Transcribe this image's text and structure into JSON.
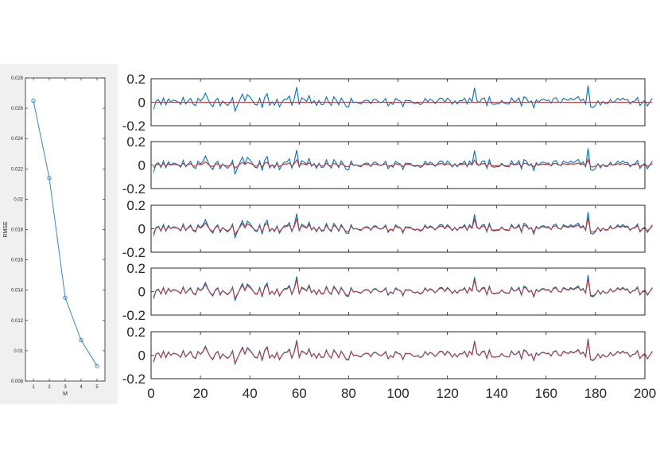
{
  "chart_data": [
    {
      "type": "line",
      "title": "",
      "xlabel": "M",
      "ylabel": "RMSE",
      "xlim": [
        0.5,
        5.5
      ],
      "ylim": [
        0.008,
        0.028
      ],
      "x_ticks": [
        "1",
        "2",
        "3",
        "4",
        "5"
      ],
      "y_ticks": [
        "0.008",
        "0.01",
        "0.012",
        "0.014",
        "0.016",
        "0.018",
        "0.02",
        "0.022",
        "0.024",
        "0.026",
        "0.028"
      ],
      "grid": false,
      "marker": "circle",
      "series": [
        {
          "color": "#3a87c8",
          "x": [
            1,
            2,
            3,
            4,
            5
          ],
          "values": [
            0.0265,
            0.0214,
            0.0135,
            0.0107,
            0.009
          ]
        }
      ]
    },
    {
      "type": "line",
      "layout": "5 stacked panels, shared x-axis",
      "xlim": [
        0,
        200
      ],
      "ylim": [
        -0.2,
        0.2
      ],
      "x_ticks": [
        "0",
        "20",
        "40",
        "60",
        "80",
        "100",
        "120",
        "140",
        "160",
        "180",
        "200"
      ],
      "y_ticks": [
        "-0.2",
        "0",
        "0.2"
      ],
      "grid": false,
      "series_colors": {
        "actual": "#0072bd",
        "fitted": "#d9322a"
      },
      "actual": [
        -0.062,
        0.009,
        0.021,
        -0.021,
        0.036,
        -0.022,
        0.028,
        0.0,
        0.018,
        0.012,
        0.002,
        -0.019,
        0.04,
        -0.015,
        0.01,
        0.033,
        -0.015,
        -0.029,
        0.033,
        0.009,
        0.032,
        0.077,
        0.028,
        -0.015,
        -0.038,
        0.013,
        0.033,
        -0.03,
        0.01,
        -0.01,
        -0.028,
        -0.005,
        0.039,
        -0.075,
        -0.025,
        0.024,
        0.069,
        0.011,
        0.065,
        0.045,
        0.016,
        -0.018,
        -0.024,
        0.035,
        -0.047,
        0.042,
        0.073,
        -0.025,
        0.003,
        -0.025,
        0.024,
        -0.039,
        0.0,
        0.026,
        0.026,
        0.053,
        -0.025,
        0.032,
        0.129,
        -0.021,
        0.038,
        0.025,
        0.007,
        0.056,
        -0.011,
        0.014,
        -0.027,
        0.016,
        -0.021,
        -0.016,
        0.045,
        -0.003,
        -0.026,
        0.046,
        0.018,
        -0.022,
        0.036,
        0.003,
        -0.038,
        -0.04,
        0.034,
        -0.004,
        0.003,
        -0.008,
        -0.015,
        0.008,
        0.017,
        0.014,
        -0.013,
        0.021,
        0.026,
        0.006,
        -0.004,
        0.007,
        0.032,
        -0.031,
        -0.004,
        -0.019,
        0.032,
        0.017,
        0.009,
        -0.037,
        0.016,
        0.014,
        0.015,
        -0.006,
        -0.012,
        -0.003,
        -0.021,
        -0.009,
        0.033,
        0.004,
        0.025,
        0.014,
        -0.011,
        0.011,
        0.035,
        0.032,
        0.0,
        0.035,
        0.016,
        -0.017,
        0.012,
        -0.015,
        0.015,
        0.012,
        0.035,
        -0.015,
        0.034,
        0.005,
        0.123,
        0.014,
        -0.003,
        0.031,
        0.036,
        -0.028,
        0.046,
        -0.014,
        -0.018,
        -0.014,
        -0.013,
        0.015,
        -0.008,
        -0.014,
        -0.015,
        0.037,
        0.005,
        0.012,
        0.037,
        -0.032,
        0.046,
        0.035,
        -0.004,
        0.011,
        -0.046,
        0.02,
        -0.001,
        0.022,
        0.026,
        0.014,
        0.018,
        -0.008,
        0.032,
        0.039,
        0.003,
        -0.005,
        0.035,
        0.024,
        0.015,
        0.034,
        0.02,
        0.033,
        0.048,
        0.011,
        0.027,
        -0.014,
        0.142,
        -0.039,
        -0.046,
        -0.026,
        0.012,
        -0.024,
        0.006,
        -0.013,
        -0.011,
        0.025,
        -0.002,
        0.009,
        0.034,
        0.016,
        0.036,
        0.019,
        0.023,
        -0.015,
        0.006,
        0.011,
        0.04,
        -0.028,
        -0.003,
        0.017,
        -0.031,
        0.0,
        0.034
      ],
      "fit_levels": [
        0.0,
        0.35,
        0.65,
        0.8,
        0.9
      ]
    }
  ]
}
